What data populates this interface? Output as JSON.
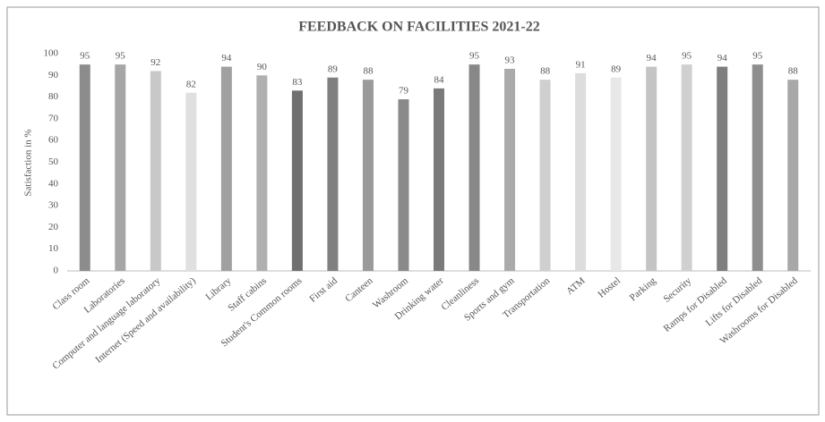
{
  "chart_data": {
    "type": "bar",
    "title": "FEEDBACK ON FACILITIES 2021-22",
    "y_label": "Satisfaction in %",
    "categories": [
      "Class room",
      "Laboratories",
      "Computer and language laboratory",
      "Internet (Speed and availability)",
      "Library",
      "Staff cabins",
      "Student's Common rooms",
      "First aid",
      "Canteen",
      "Washroom",
      "Drinking water",
      "Cleanliness",
      "Sports and gym",
      "Transportation",
      "ATM",
      "Hostel",
      "Parking",
      "Security",
      "Ramps for Disabled",
      "Lifts for Disabled",
      "Washrooms for Disabled"
    ],
    "values": [
      95,
      95,
      92,
      82,
      94,
      90,
      83,
      89,
      88,
      79,
      84,
      95,
      93,
      88,
      91,
      89,
      94,
      95,
      94,
      95,
      88
    ],
    "colors": [
      "#8c8c8c",
      "#a6a6a6",
      "#c8c8c8",
      "#e0e0e0",
      "#a0a0a0",
      "#b0b0b0",
      "#707070",
      "#808080",
      "#9a9a9a",
      "#8a8a8a",
      "#7a7a7a",
      "#888888",
      "#aaaaaa",
      "#cfcfcf",
      "#dddddd",
      "#e8e8e8",
      "#c4c4c4",
      "#d0d0d0",
      "#7e7e7e",
      "#8e8e8e",
      "#a8a8a8"
    ],
    "ylim": [
      0,
      100
    ],
    "yticks": [
      0,
      10,
      20,
      30,
      40,
      50,
      60,
      70,
      80,
      90,
      100
    ],
    "grid": false
  }
}
